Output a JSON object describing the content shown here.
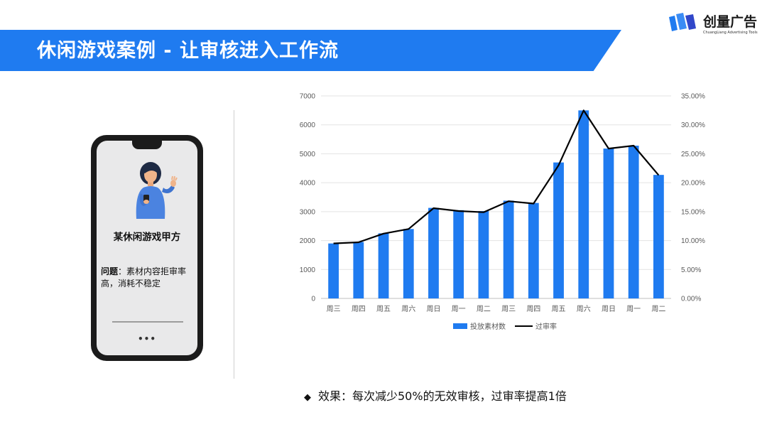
{
  "header": {
    "title": "休闲游戏案例 - 让审核进入工作流"
  },
  "logo": {
    "name": "创量广告",
    "tagline": "ChuangLiang Advertising Tools"
  },
  "phone": {
    "client": "某休闲游戏甲方",
    "problem_label": "问题",
    "problem_text": "：素材内容拒审率高，消耗不稳定",
    "more": "•••"
  },
  "footer": {
    "marker": "◆",
    "text": "效果：每次减少50%的无效审核，过审率提高1倍"
  },
  "colors": {
    "accent": "#1f7bf0",
    "bar": "#1f7bf0",
    "line": "#000000"
  },
  "chart_data": {
    "type": "bar",
    "categories": [
      "周三",
      "周四",
      "周五",
      "周六",
      "周日",
      "周一",
      "周二",
      "周三",
      "周四",
      "周五",
      "周六",
      "周日",
      "周一",
      "周二"
    ],
    "series": [
      {
        "name": "投放素材数",
        "type": "bar",
        "axis": "left",
        "values": [
          1900,
          1950,
          2250,
          2400,
          3130,
          3050,
          3020,
          3380,
          3300,
          4700,
          6500,
          5180,
          5280,
          4270
        ]
      },
      {
        "name": "过审率",
        "type": "line",
        "axis": "right",
        "values": [
          9.5,
          9.7,
          11.2,
          12.0,
          15.6,
          15.1,
          14.9,
          16.8,
          16.4,
          23.0,
          32.5,
          25.9,
          26.4,
          21.3
        ]
      }
    ],
    "y_left": {
      "min": 0,
      "max": 7000,
      "step": 1000
    },
    "y_right": {
      "min": 0,
      "max": 35,
      "step": 5,
      "format": "percent2"
    },
    "grid": true,
    "legend": "bottom"
  }
}
